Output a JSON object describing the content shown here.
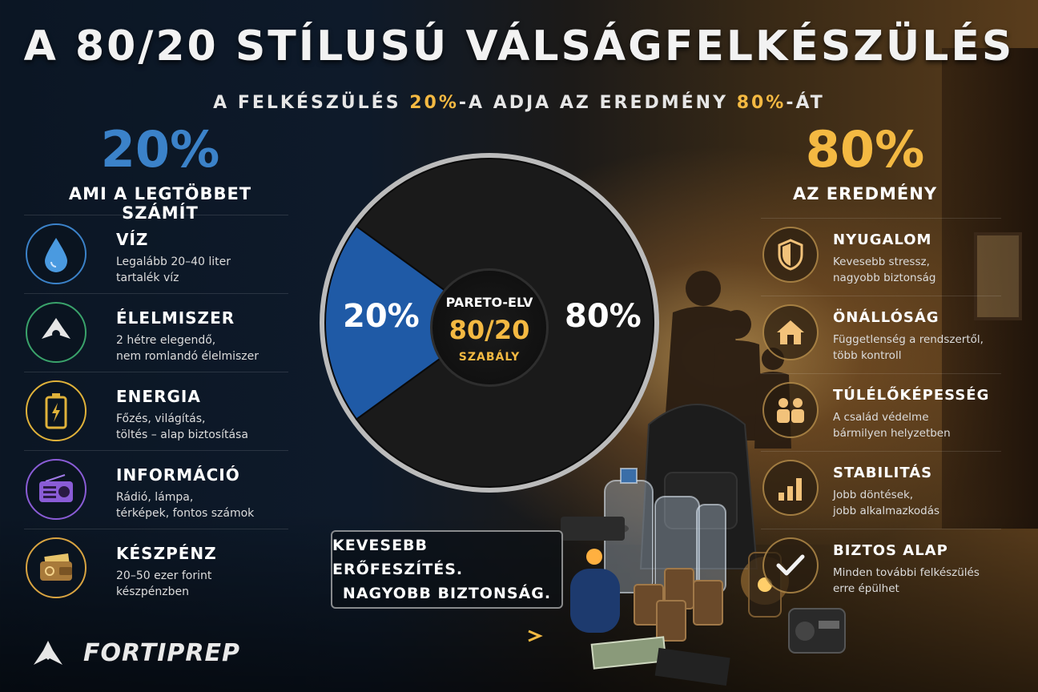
{
  "title": "A 80/20 STÍLUSÚ VÁLSÁGFELKÉSZÜLÉS",
  "subtitle": {
    "part1": "A FELKÉSZÜLÉS ",
    "hl1": "20%",
    "part2": "-A ADJA AZ EREDMÉNY ",
    "hl2": "80%",
    "part3": "-ÁT"
  },
  "left": {
    "big": "20%",
    "label": "AMI A LEGTÖBBET SZÁMÍT",
    "items": [
      {
        "title": "VÍZ",
        "line1": "Legalább 20–40 liter",
        "line2": "tartalék víz",
        "icon": "water-drop-icon",
        "color": "#3b82c9"
      },
      {
        "title": "ÉLELMISZER",
        "line1": "2 hétre elegendő,",
        "line2": "nem romlandó élelmiszer",
        "icon": "food-icon",
        "color": "#3aa36b"
      },
      {
        "title": "ENERGIA",
        "line1": "Főzés, világítás,",
        "line2": "töltés – alap biztosítása",
        "icon": "battery-icon",
        "color": "#e0b23a"
      },
      {
        "title": "INFORMÁCIÓ",
        "line1": "Rádió, lámpa,",
        "line2": "térképek, fontos számok",
        "icon": "radio-icon",
        "color": "#8a5cd6"
      },
      {
        "title": "KÉSZPÉNZ",
        "line1": "20–50 ezer forint",
        "line2": "készpénzben",
        "icon": "wallet-icon",
        "color": "#d9a441"
      }
    ]
  },
  "right": {
    "big": "80%",
    "label": "AZ EREDMÉNY",
    "items": [
      {
        "title": "NYUGALOM",
        "line1": "Kevesebb stressz,",
        "line2": "nagyobb biztonság",
        "icon": "shield-icon"
      },
      {
        "title": "ÖNÁLLÓSÁG",
        "line1": "Függetlenség a rendszertől,",
        "line2": "több kontroll",
        "icon": "house-icon"
      },
      {
        "title": "TÚLÉLŐKÉPESSÉG",
        "line1": "A család védelme",
        "line2": "bármilyen helyzetben",
        "icon": "family-icon"
      },
      {
        "title": "STABILITÁS",
        "line1": "Jobb döntések,",
        "line2": "jobb alkalmazkodás",
        "icon": "bar-growth-icon"
      },
      {
        "title": "BIZTOS ALAP",
        "line1": "Minden további felkészülés",
        "line2": "erre épülhet",
        "icon": "checkmark-icon"
      }
    ]
  },
  "pie": {
    "left_pct": "20%",
    "right_pct": "80%",
    "values": [
      20,
      80
    ],
    "colors": [
      "#1f5aa6",
      "#1a1a1a"
    ]
  },
  "pareto": {
    "top": "PARETO-ELV",
    "mid": "80/20",
    "bot": "SZABÁLY"
  },
  "slogan": {
    "line1": "KEVESEBB ERŐFESZÍTÉS.",
    "line2": "NAGYOBB BIZTONSÁG."
  },
  "logo": "FORTIPREP",
  "colors": {
    "accent_blue": "#3b82c9",
    "accent_gold": "#f4b942"
  }
}
